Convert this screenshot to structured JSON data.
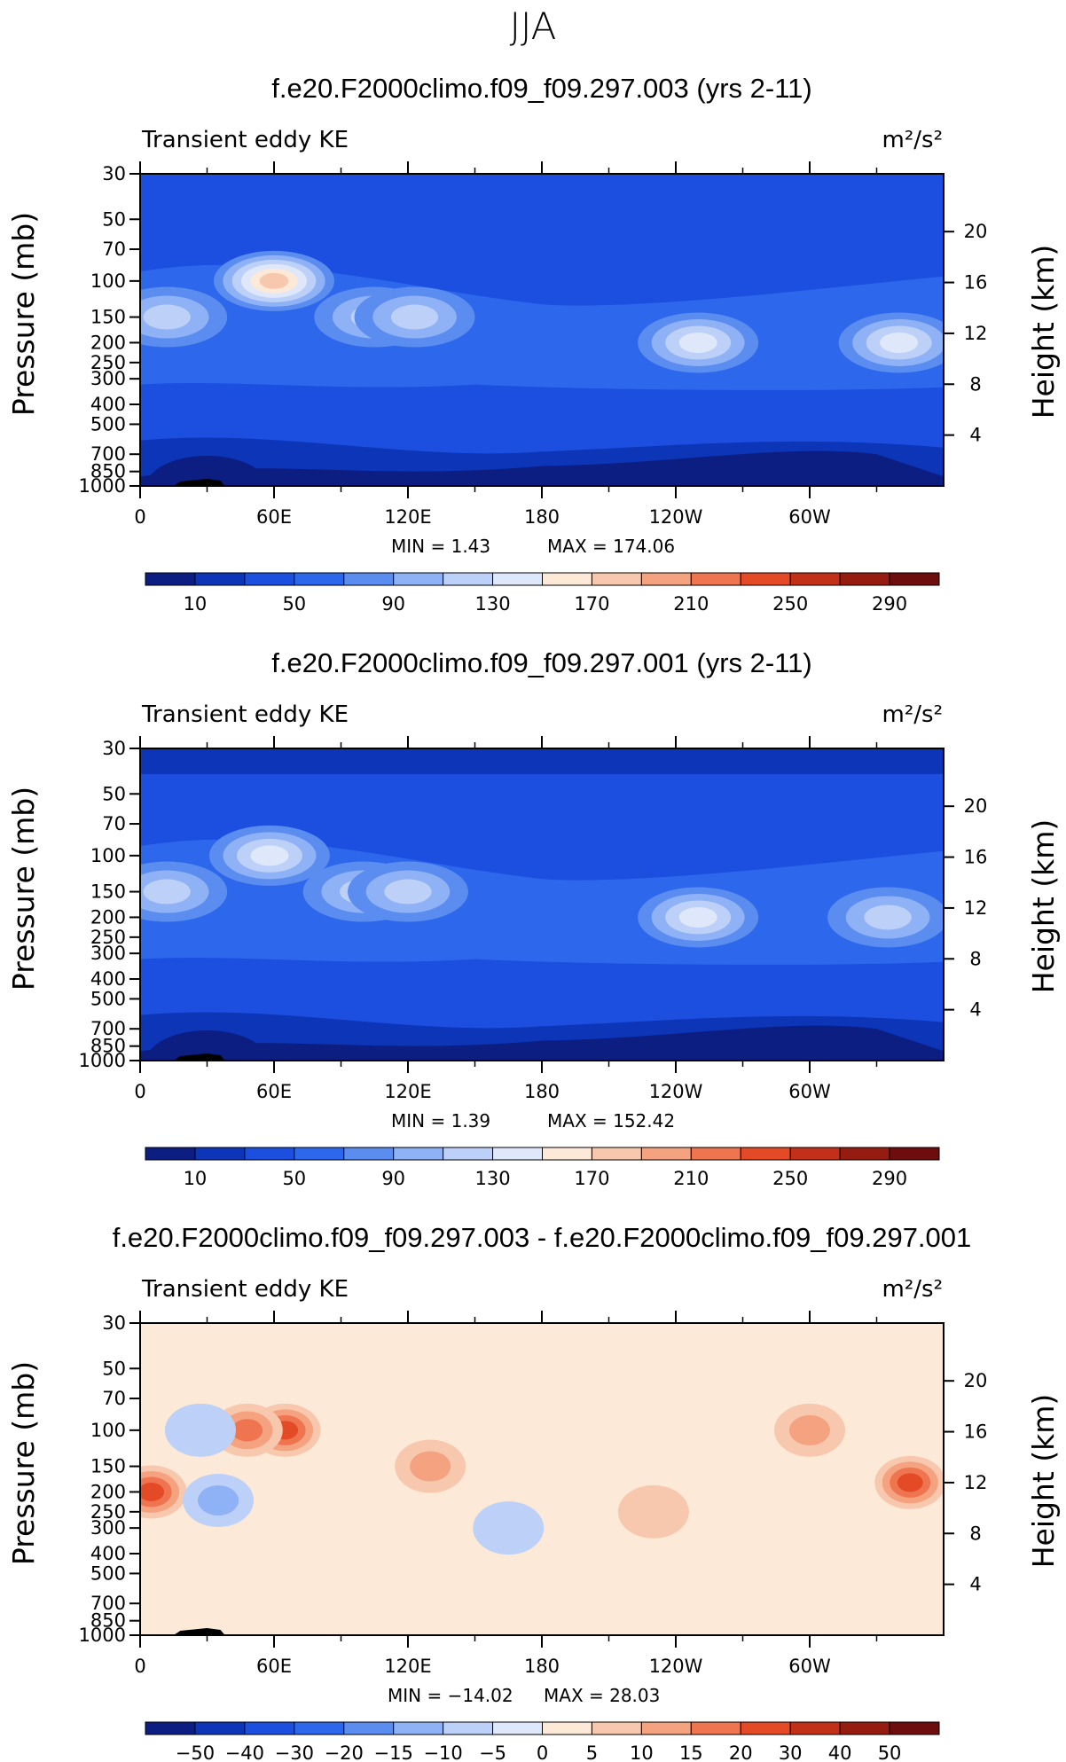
{
  "figure_title": "JJA",
  "chart_data": [
    {
      "type": "heatmap",
      "title": "f.e20.F2000climo.f09_f09.297.003 (yrs 2-11)",
      "variable": "Transient eddy KE",
      "units": "m²/s²",
      "xlabel": "",
      "ylabel": "Pressure (mb)",
      "y2label": "Height (km)",
      "x_ticks": [
        "0",
        "60E",
        "120E",
        "180",
        "120W",
        "60W"
      ],
      "y_ticks": [
        "30",
        "50",
        "70",
        "100",
        "150",
        "200",
        "250",
        "300",
        "400",
        "500",
        "700",
        "850",
        "1000"
      ],
      "y2_ticks": [
        "20",
        "16",
        "12",
        "8",
        "4"
      ],
      "min_text": "MIN =    1.43",
      "max_text": "MAX = 174.06",
      "min": 1.43,
      "max": 174.06,
      "colorbar_labels": [
        "10",
        "50",
        "90",
        "130",
        "170",
        "210",
        "250",
        "290"
      ],
      "levels": [
        10,
        30,
        50,
        70,
        90,
        110,
        130,
        150,
        170,
        190,
        210,
        230,
        250,
        270,
        290
      ],
      "features": [
        {
          "lon": 12,
          "p": 150,
          "value": 125
        },
        {
          "lon": 60,
          "p": 100,
          "value": 172
        },
        {
          "lon": 105,
          "p": 150,
          "value": 120
        },
        {
          "lon": 123,
          "p": 150,
          "value": 120
        },
        {
          "lon": 250,
          "p": 200,
          "value": 138
        },
        {
          "lon": 340,
          "p": 200,
          "value": 132
        },
        {
          "lon": 30,
          "p": 1000,
          "value": 3
        }
      ]
    },
    {
      "type": "heatmap",
      "title": "f.e20.F2000climo.f09_f09.297.001 (yrs 2-11)",
      "variable": "Transient eddy KE",
      "units": "m²/s²",
      "xlabel": "",
      "ylabel": "Pressure (mb)",
      "y2label": "Height (km)",
      "x_ticks": [
        "0",
        "60E",
        "120E",
        "180",
        "120W",
        "60W"
      ],
      "y_ticks": [
        "30",
        "50",
        "70",
        "100",
        "150",
        "200",
        "250",
        "300",
        "400",
        "500",
        "700",
        "850",
        "1000"
      ],
      "y2_ticks": [
        "20",
        "16",
        "12",
        "8",
        "4"
      ],
      "min_text": "MIN =    1.39",
      "max_text": "MAX = 152.42",
      "min": 1.39,
      "max": 152.42,
      "colorbar_labels": [
        "10",
        "50",
        "90",
        "130",
        "170",
        "210",
        "250",
        "290"
      ],
      "levels": [
        10,
        30,
        50,
        70,
        90,
        110,
        130,
        150,
        170,
        190,
        210,
        230,
        250,
        270,
        290
      ],
      "features": [
        {
          "lon": 12,
          "p": 150,
          "value": 128
        },
        {
          "lon": 58,
          "p": 100,
          "value": 148
        },
        {
          "lon": 100,
          "p": 150,
          "value": 110
        },
        {
          "lon": 120,
          "p": 150,
          "value": 112
        },
        {
          "lon": 250,
          "p": 200,
          "value": 140
        },
        {
          "lon": 335,
          "p": 200,
          "value": 125
        },
        {
          "lon": 30,
          "p": 1000,
          "value": 3
        }
      ]
    },
    {
      "type": "heatmap",
      "title": "f.e20.F2000climo.f09_f09.297.003 - f.e20.F2000climo.f09_f09.297.001",
      "variable": "Transient eddy KE",
      "units": "m²/s²",
      "xlabel": "",
      "ylabel": "Pressure (mb)",
      "y2label": "Height (km)",
      "x_ticks": [
        "0",
        "60E",
        "120E",
        "180",
        "120W",
        "60W"
      ],
      "y_ticks": [
        "30",
        "50",
        "70",
        "100",
        "150",
        "200",
        "250",
        "300",
        "400",
        "500",
        "700",
        "850",
        "1000"
      ],
      "y2_ticks": [
        "20",
        "16",
        "12",
        "8",
        "4"
      ],
      "min_text": "MIN = −14.02",
      "max_text": "MAX =   28.03",
      "min": -14.02,
      "max": 28.03,
      "colorbar_labels": [
        "−50",
        "−40",
        "−30",
        "−20",
        "−15",
        "−10",
        "−5",
        "0",
        "5",
        "10",
        "15",
        "20",
        "30",
        "40",
        "50"
      ],
      "levels": [
        -50,
        -40,
        -30,
        -20,
        -15,
        -10,
        -5,
        0,
        5,
        10,
        15,
        20,
        30,
        40,
        50
      ],
      "features": [
        {
          "lon": 65,
          "p": 100,
          "value": 26
        },
        {
          "lon": 48,
          "p": 100,
          "value": 18
        },
        {
          "lon": 5,
          "p": 200,
          "value": 20
        },
        {
          "lon": 35,
          "p": 220,
          "value": -12
        },
        {
          "lon": 27,
          "p": 100,
          "value": -9
        },
        {
          "lon": 130,
          "p": 150,
          "value": 10
        },
        {
          "lon": 230,
          "p": 250,
          "value": 8
        },
        {
          "lon": 300,
          "p": 100,
          "value": 10
        },
        {
          "lon": 345,
          "p": 180,
          "value": 28
        },
        {
          "lon": 165,
          "p": 300,
          "value": -5
        }
      ]
    }
  ],
  "palette": [
    "#0c1e82",
    "#0d35b8",
    "#1c4fe0",
    "#2d68ec",
    "#5b8cf0",
    "#8fb1f5",
    "#bdd1f8",
    "#dfe8fb",
    "#fde9d8",
    "#f8c8ae",
    "#f4a27f",
    "#ef7551",
    "#e54a26",
    "#c2301a",
    "#961c12",
    "#6e0d0d"
  ]
}
